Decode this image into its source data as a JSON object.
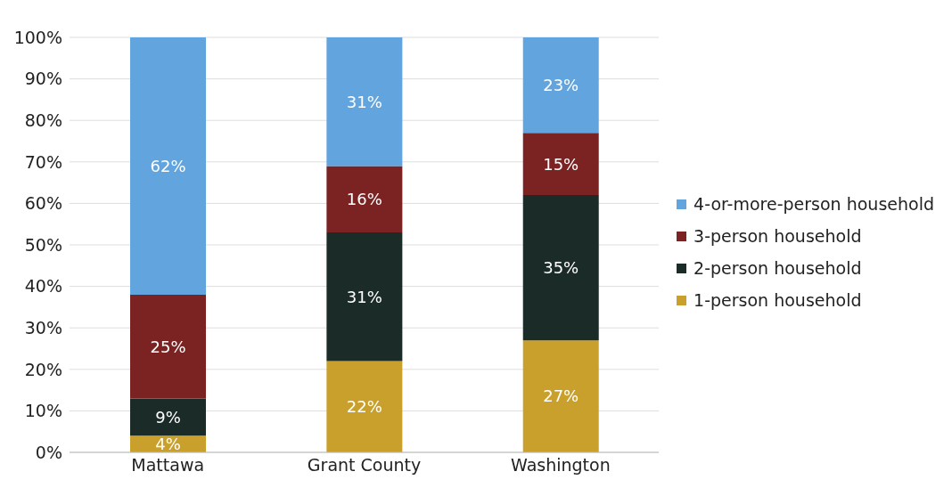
{
  "chart_data": {
    "type": "bar",
    "stacked": true,
    "categories": [
      "Mattawa",
      "Grant County",
      "Washington"
    ],
    "series": [
      {
        "name": "1-person household",
        "color": "#c9a02c",
        "values": [
          4,
          22,
          27
        ],
        "value_labels": [
          "4%",
          "22%",
          "27%"
        ]
      },
      {
        "name": "2-person household",
        "color": "#1b2b27",
        "values": [
          9,
          31,
          35
        ],
        "value_labels": [
          "9%",
          "31%",
          "35%"
        ]
      },
      {
        "name": "3-person household",
        "color": "#7b2222",
        "values": [
          25,
          16,
          15
        ],
        "value_labels": [
          "25%",
          "16%",
          "15%"
        ]
      },
      {
        "name": "4-or-more-person household",
        "color": "#62a4dd",
        "values": [
          62,
          31,
          23
        ],
        "value_labels": [
          "62%",
          "31%",
          "23%"
        ]
      }
    ],
    "ylim": [
      0,
      100
    ],
    "yticks": [
      {
        "value": 0,
        "label": "0%"
      },
      {
        "value": 10,
        "label": "10%"
      },
      {
        "value": 20,
        "label": "20%"
      },
      {
        "value": 30,
        "label": "30%"
      },
      {
        "value": 40,
        "label": "40%"
      },
      {
        "value": 50,
        "label": "50%"
      },
      {
        "value": 60,
        "label": "60%"
      },
      {
        "value": 70,
        "label": "70%"
      },
      {
        "value": 80,
        "label": "80%"
      },
      {
        "value": 90,
        "label": "90%"
      },
      {
        "value": 100,
        "label": "100%"
      }
    ],
    "grid": "y",
    "legend": "right"
  }
}
